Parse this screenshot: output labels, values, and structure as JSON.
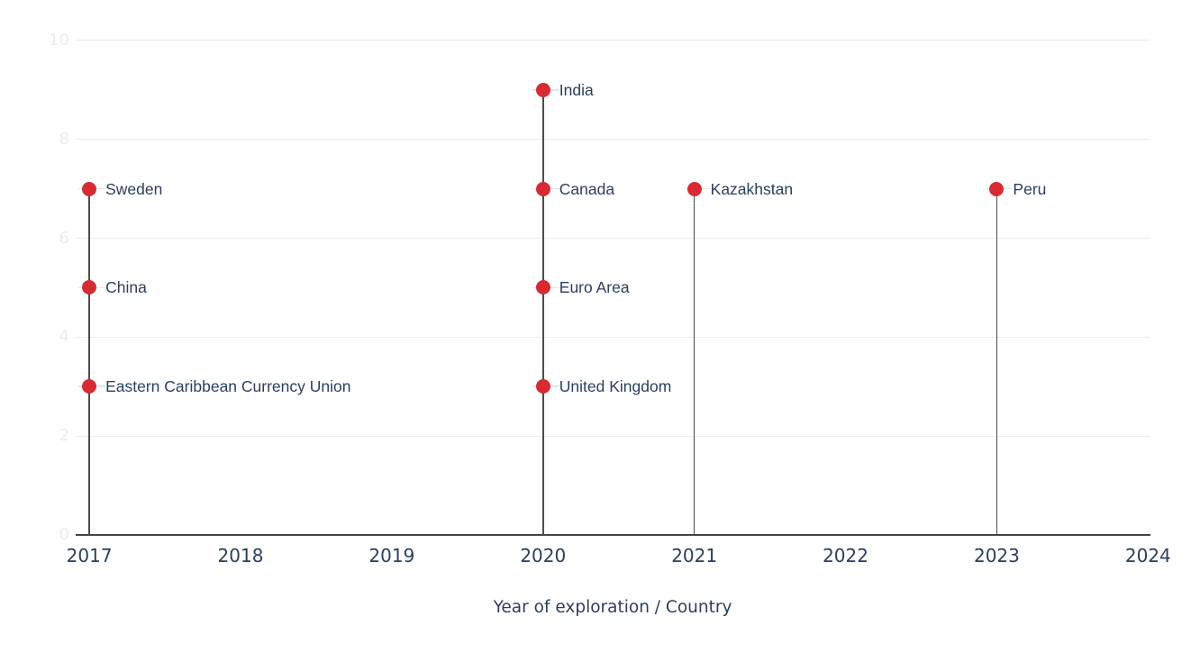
{
  "chart_data": {
    "type": "scatter",
    "subtype": "lollipop",
    "title": "",
    "xlabel": "Year of exploration / Country",
    "ylabel": "",
    "xlim": [
      2016.91,
      2024.01
    ],
    "ylim": [
      0,
      10.2
    ],
    "x_ticks": [
      "2017",
      "2018",
      "2019",
      "2020",
      "2021",
      "2022",
      "2023",
      "2024"
    ],
    "y_ticks": [
      "0",
      "2",
      "4",
      "6",
      "8",
      "10"
    ],
    "grid": true,
    "legend": "none",
    "points": [
      {
        "label": "Sweden",
        "x": 2017,
        "y": 7
      },
      {
        "label": "China",
        "x": 2017,
        "y": 5
      },
      {
        "label": "Eastern Caribbean Currency Union",
        "x": 2017,
        "y": 3
      },
      {
        "label": "India",
        "x": 2020,
        "y": 9
      },
      {
        "label": "Canada",
        "x": 2020,
        "y": 7
      },
      {
        "label": "Euro Area",
        "x": 2020,
        "y": 5
      },
      {
        "label": "United Kingdom",
        "x": 2020,
        "y": 3
      },
      {
        "label": "Kazakhstan",
        "x": 2021,
        "y": 7
      },
      {
        "label": "Peru",
        "x": 2023,
        "y": 7
      }
    ],
    "colors": {
      "marker": "#d62b33",
      "label_text": "#2a3f5f",
      "axis_text": "#2a3f5f",
      "grid": "#ebebeb",
      "y_tick_text": "#ececec",
      "axis_line": "#3d444b",
      "stem": "#4c4c4c",
      "connector": "#e4e4e4",
      "background": "#ffffff"
    }
  }
}
